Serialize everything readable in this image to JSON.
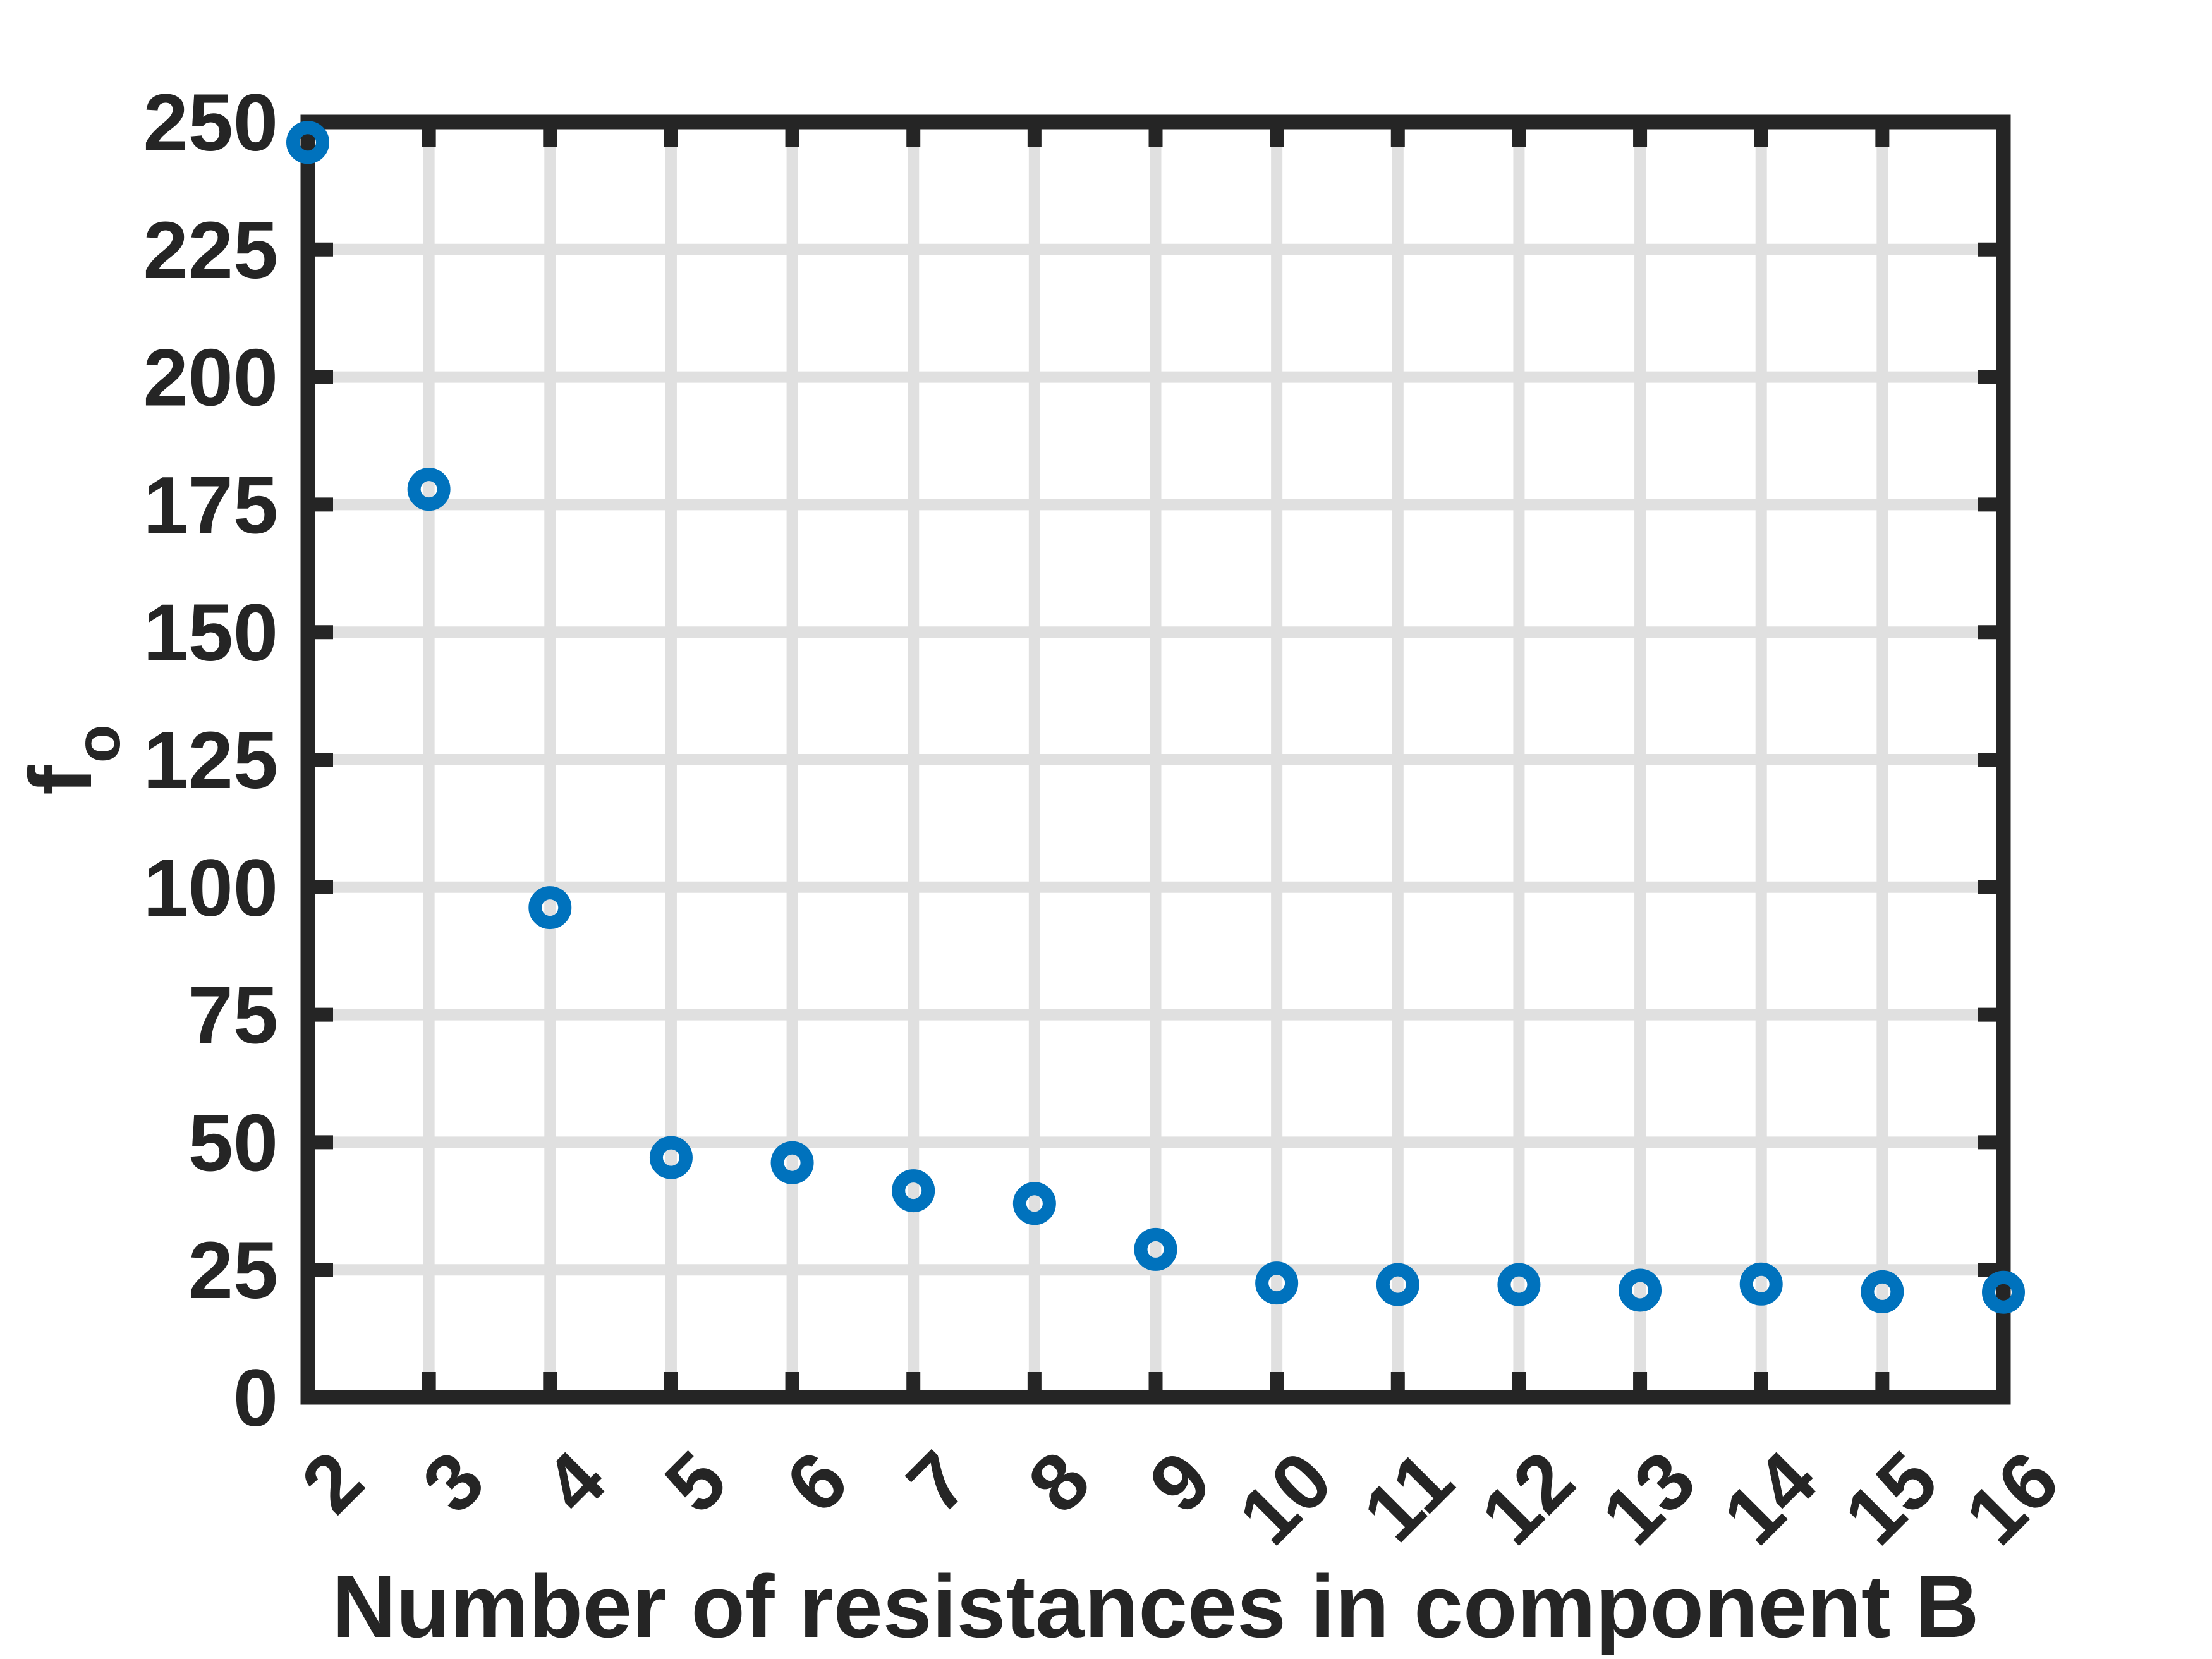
{
  "chart_data": {
    "type": "scatter",
    "title": "",
    "xlabel": "Number of resistances in component B",
    "ylabel": "f_o",
    "ylabel_base": "f",
    "ylabel_sub": "o",
    "x": [
      2,
      3,
      4,
      5,
      6,
      7,
      8,
      9,
      10,
      11,
      12,
      13,
      14,
      15,
      16
    ],
    "y": [
      246,
      178,
      96,
      47,
      46,
      40.5,
      38,
      29,
      22.4,
      22.1,
      22.1,
      21.0,
      22.2,
      20.7,
      20.6
    ],
    "xlim": [
      2,
      16
    ],
    "ylim": [
      0,
      250
    ],
    "x_ticks": [
      2,
      3,
      4,
      5,
      6,
      7,
      8,
      9,
      10,
      11,
      12,
      13,
      14,
      15,
      16
    ],
    "x_tick_labels": [
      "2",
      "3",
      "4",
      "5",
      "6",
      "7",
      "8",
      "9",
      "10",
      "11",
      "12",
      "13",
      "14",
      "15",
      "16"
    ],
    "y_ticks": [
      0,
      25,
      50,
      75,
      100,
      125,
      150,
      175,
      200,
      225,
      250
    ],
    "y_tick_labels": [
      "0",
      "25",
      "50",
      "75",
      "100",
      "125",
      "150",
      "175",
      "200",
      "225",
      "250"
    ],
    "x_tick_rotation_deg": 45,
    "grid": true,
    "legend": "none",
    "marker": {
      "shape": "open-circle",
      "filled": false
    },
    "colors": {
      "marker": "#0072BD",
      "axis": "#252525",
      "grid": "#e0e0e0",
      "text": "#252525",
      "background": "#ffffff"
    }
  }
}
